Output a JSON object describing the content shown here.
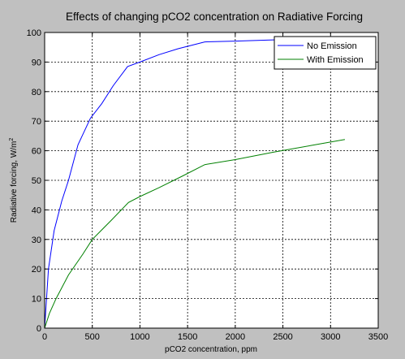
{
  "chart_data": {
    "type": "line",
    "title": "Effects of changing pCO2 concentration on Radiative Forcing",
    "xlabel": "pCO2 concentration, ppm",
    "ylabel": "Radiative forcing, W/m",
    "ylabel_superscript": "2",
    "xlim": [
      0,
      3500
    ],
    "ylim": [
      0,
      100
    ],
    "xticks": [
      0,
      500,
      1000,
      1500,
      2000,
      2500,
      3000,
      3500
    ],
    "yticks": [
      0,
      10,
      20,
      30,
      40,
      50,
      60,
      70,
      80,
      90,
      100
    ],
    "grid": true,
    "legend_position": "top-right",
    "series": [
      {
        "name": "No Emission",
        "color": "#0000ff",
        "x": [
          0,
          40,
          100,
          180,
          250,
          350,
          480,
          600,
          720,
          870,
          1000,
          1200,
          1400,
          1680,
          2000,
          2400,
          2800,
          3150
        ],
        "y": [
          0,
          20,
          33,
          43,
          50,
          62,
          71,
          76,
          82,
          88.5,
          90,
          92.5,
          94.5,
          96.8,
          97.1,
          97.5,
          97.7,
          98
        ]
      },
      {
        "name": "With Emission",
        "color": "#008000",
        "x": [
          0,
          50,
          120,
          250,
          400,
          500,
          700,
          880,
          1000,
          1200,
          1450,
          1680,
          2000,
          2400,
          2800,
          3150
        ],
        "y": [
          0,
          5,
          10,
          18,
          25,
          30,
          36.5,
          42.5,
          44.5,
          47.5,
          51.5,
          55.3,
          57,
          59.5,
          61.8,
          63.8
        ]
      }
    ]
  }
}
